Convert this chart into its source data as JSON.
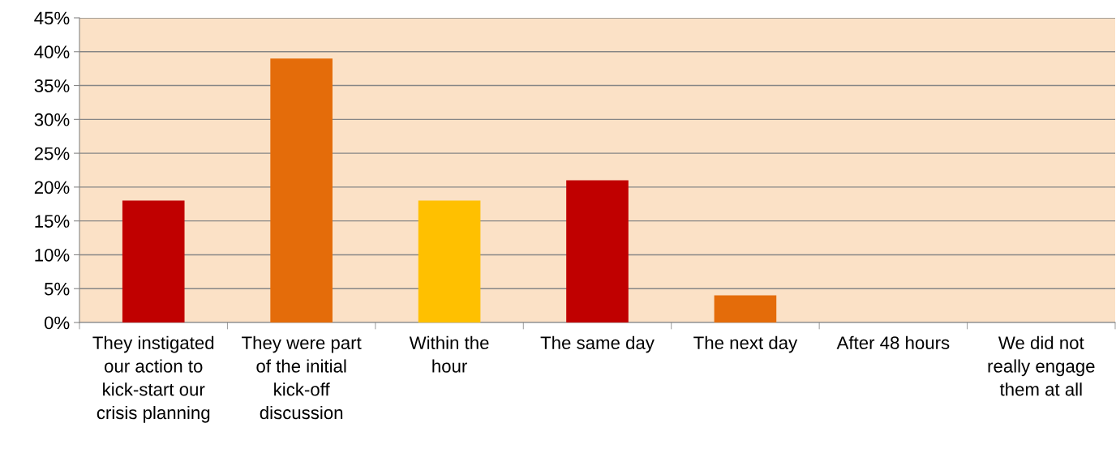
{
  "chart_data": {
    "type": "bar",
    "categories": [
      "They instigated\nour action to\nkick-start our\ncrisis planning",
      "They were part\nof the initial\nkick-off\ndiscussion",
      "Within the\nhour",
      "The same day",
      "The next day",
      "After 48 hours",
      "We did not\nreally engage\nthem at all"
    ],
    "values": [
      18,
      39,
      18,
      21,
      4,
      0,
      0
    ],
    "colors": [
      "#c00000",
      "#e46c0a",
      "#ffc000",
      "#c00000",
      "#e46c0a",
      "#ffc000",
      "#c00000"
    ],
    "ylim": [
      0,
      45
    ],
    "yticks": [
      {
        "value": 0,
        "label": "0%"
      },
      {
        "value": 5,
        "label": "5%"
      },
      {
        "value": 10,
        "label": "10%"
      },
      {
        "value": 15,
        "label": "15%"
      },
      {
        "value": 20,
        "label": "20%"
      },
      {
        "value": 25,
        "label": "25%"
      },
      {
        "value": 30,
        "label": "30%"
      },
      {
        "value": 35,
        "label": "35%"
      },
      {
        "value": 40,
        "label": "40%"
      },
      {
        "value": 45,
        "label": "45%"
      }
    ],
    "grid": "y",
    "legend": false
  }
}
